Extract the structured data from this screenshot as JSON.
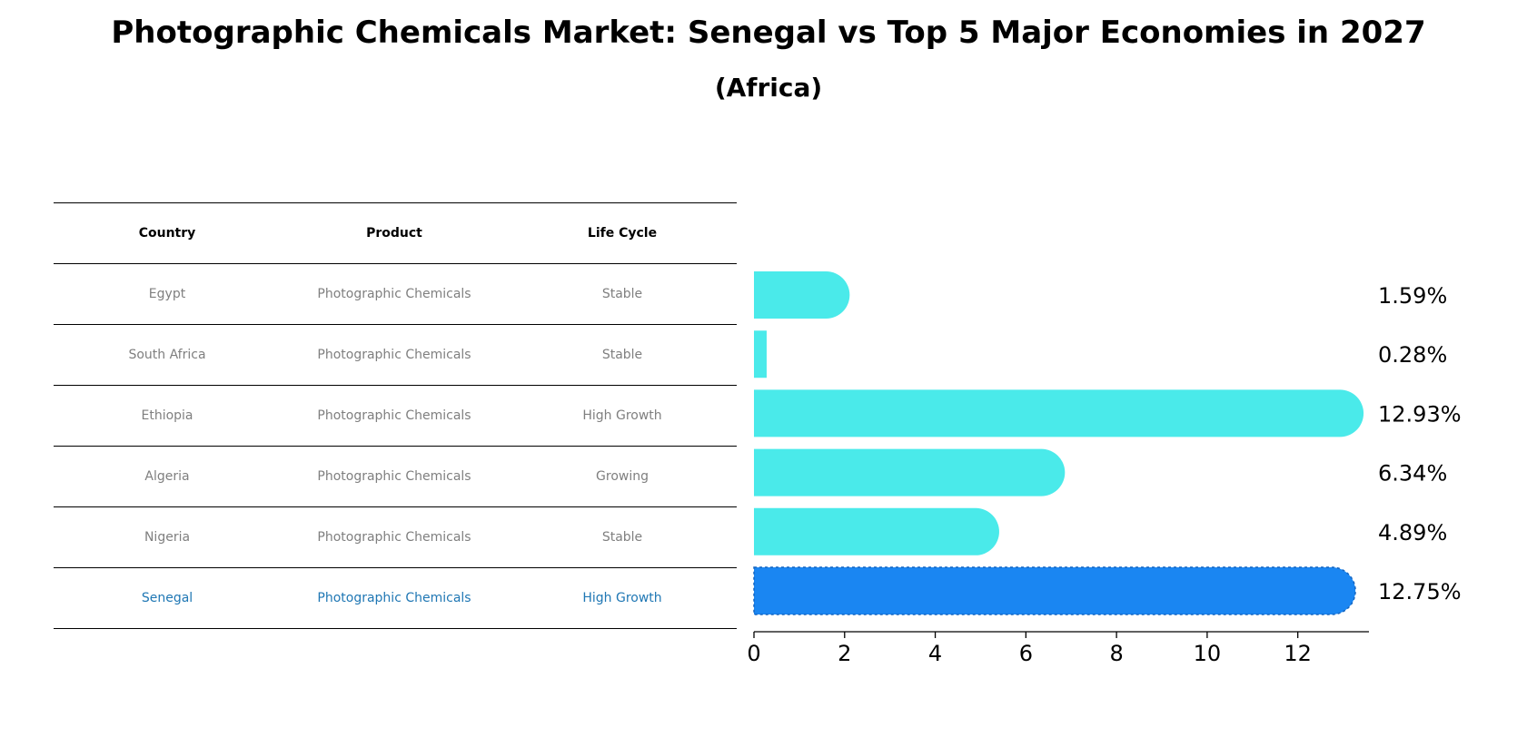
{
  "title": "Photographic Chemicals Market: Senegal vs Top 5 Major Economies in 2027",
  "subtitle": "(Africa)",
  "table": {
    "headers": [
      "Country",
      "Product",
      "Life Cycle"
    ],
    "rows": [
      {
        "country": "Egypt",
        "product": "Photographic Chemicals",
        "life_cycle": "Stable"
      },
      {
        "country": "South Africa",
        "product": "Photographic Chemicals",
        "life_cycle": "Stable"
      },
      {
        "country": "Ethiopia",
        "product": "Photographic Chemicals",
        "life_cycle": "High Growth"
      },
      {
        "country": "Algeria",
        "product": "Photographic Chemicals",
        "life_cycle": "Growing"
      },
      {
        "country": "Nigeria",
        "product": "Photographic Chemicals",
        "life_cycle": "Stable"
      },
      {
        "country": "Senegal",
        "product": "Photographic Chemicals",
        "life_cycle": "High Growth"
      }
    ]
  },
  "chart_data": {
    "type": "bar",
    "orientation": "horizontal",
    "categories": [
      "Egypt",
      "South Africa",
      "Ethiopia",
      "Algeria",
      "Nigeria",
      "Senegal"
    ],
    "values": [
      1.59,
      0.28,
      12.93,
      6.34,
      4.89,
      12.75
    ],
    "value_labels": [
      "1.59%",
      "0.28%",
      "12.93%",
      "6.34%",
      "4.89%",
      "12.75%"
    ],
    "highlight": "Senegal",
    "xlim": [
      0,
      13.57
    ],
    "xticks": [
      0,
      2,
      4,
      6,
      8,
      10,
      12
    ],
    "xtick_labels": [
      "0",
      "2",
      "4",
      "6",
      "8",
      "10",
      "12"
    ],
    "colors": {
      "default": "#4aeaea",
      "highlight": "#1a86f2",
      "highlight_text": "#1f77b4"
    }
  }
}
